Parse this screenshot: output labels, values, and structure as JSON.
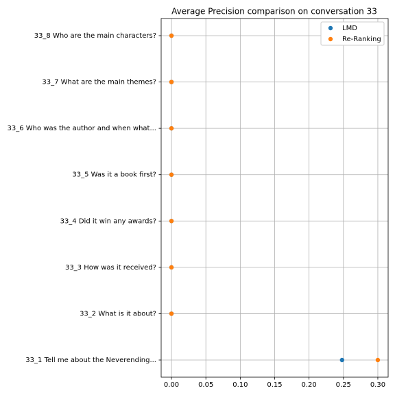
{
  "chart_data": {
    "type": "scatter",
    "title": "Average Precision comparison on conversation 33",
    "categories": [
      "33_1 Tell me about the Neverending...",
      "33_2 What is it about?",
      "33_3 How was it received?",
      "33_4 Did it win any awards?",
      "33_5 Was it a book first?",
      "33_6 Who was the author and when what...",
      "33_7 What are the main themes?",
      "33_8 Who are the main characters?"
    ],
    "series": [
      {
        "name": "LMD",
        "color": "#1f77b4",
        "values": [
          0.248,
          0,
          0,
          0,
          0,
          0,
          0,
          0
        ]
      },
      {
        "name": "Re-Ranking",
        "color": "#ff7f0e",
        "values": [
          0.3,
          0,
          0,
          0,
          0,
          0,
          0,
          0
        ]
      }
    ],
    "xlim": [
      -0.015,
      0.315
    ],
    "xticks": [
      {
        "value": 0,
        "label": "0.00"
      },
      {
        "value": 0.05,
        "label": "0.05"
      },
      {
        "value": 0.1,
        "label": "0.10"
      },
      {
        "value": 0.15,
        "label": "0.15"
      },
      {
        "value": 0.2,
        "label": "0.20"
      },
      {
        "value": 0.25,
        "label": "0.25"
      },
      {
        "value": 0.3,
        "label": "0.30"
      }
    ],
    "grid": true,
    "legend": "upper right"
  }
}
